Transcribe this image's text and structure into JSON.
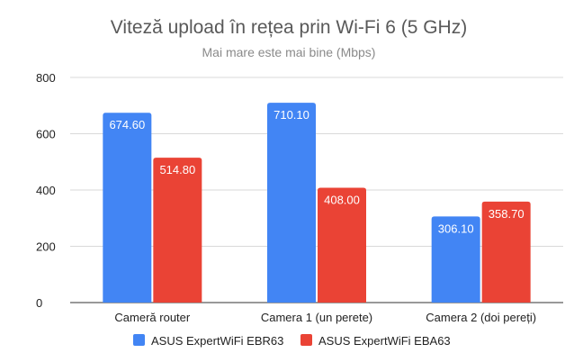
{
  "colors": {
    "series_1": "#4285f4",
    "series_2": "#ea4335",
    "grid": "#d9d9d9",
    "baseline": "#333333"
  },
  "chart_data": {
    "type": "bar",
    "title": "Viteză upload în rețea prin Wi-Fi 6 (5 GHz)",
    "subtitle": "Mai mare este mai bine (Mbps)",
    "xlabel": "",
    "ylabel": "",
    "categories": [
      "Cameră router",
      "Camera 1 (un perete)",
      "Camera 2 (doi pereți)"
    ],
    "series": [
      {
        "name": "ASUS ExpertWiFi EBR63",
        "values": [
          674.6,
          710.1,
          306.1
        ],
        "labels": [
          "674.60",
          "710.10",
          "306.10"
        ]
      },
      {
        "name": "ASUS ExpertWiFi EBA63",
        "values": [
          514.8,
          408.0,
          358.7
        ],
        "labels": [
          "514.80",
          "408.00",
          "358.70"
        ]
      }
    ],
    "yticks": [
      0,
      200,
      400,
      600,
      800
    ],
    "ylim": [
      0,
      800
    ],
    "grid": true,
    "legend": "bottom-center"
  }
}
